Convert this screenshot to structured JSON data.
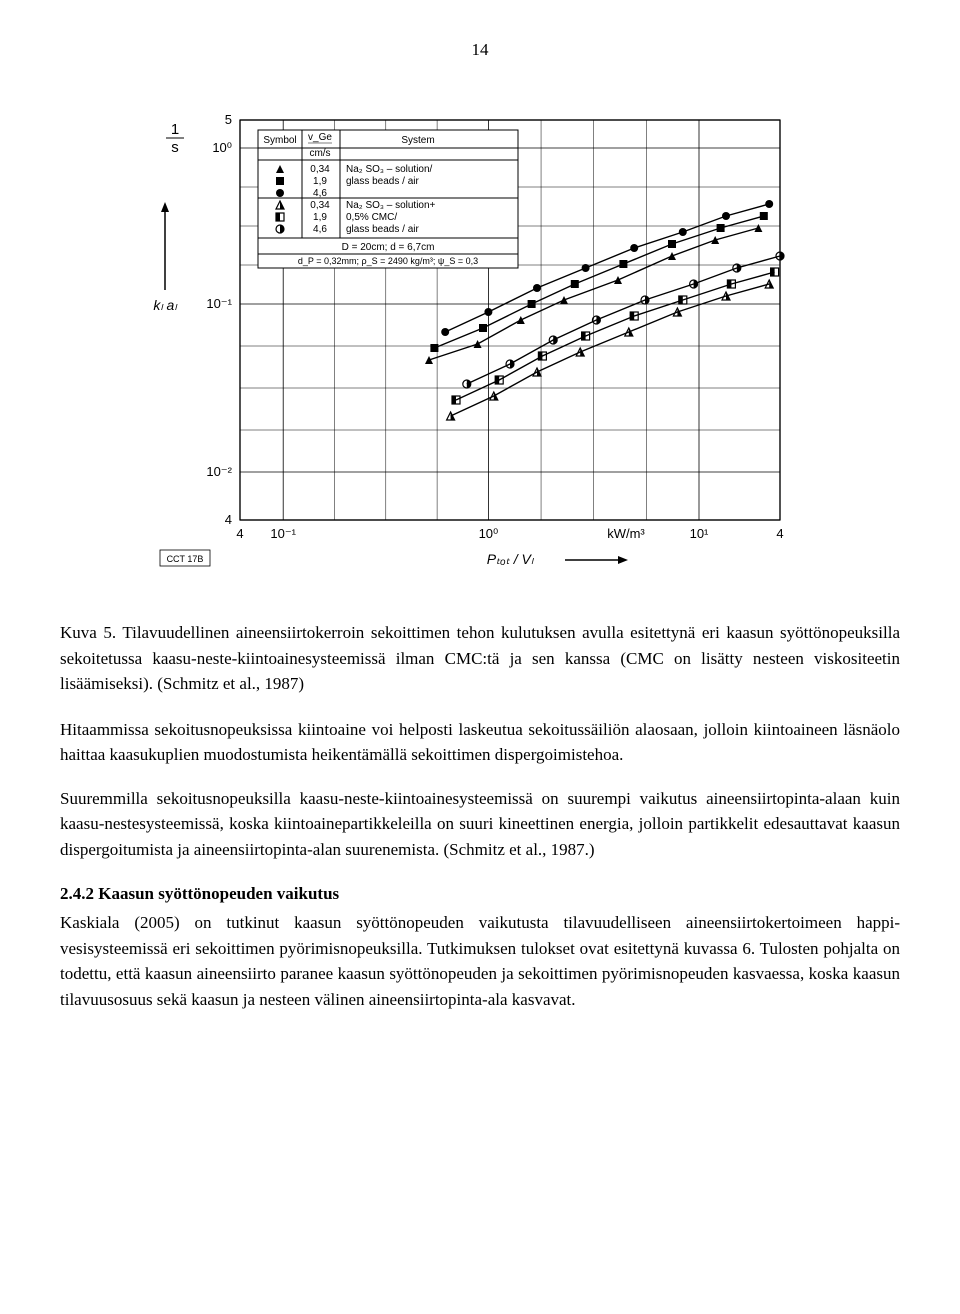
{
  "page_number": "14",
  "figure": {
    "type": "scatter-log-log",
    "y_axis_label_top": "1",
    "y_axis_label_bottom": "s",
    "y_axis_symbol": "k_L a_L",
    "x_axis_label": "P_tot / V_L",
    "x_axis_unit": "kW/m³",
    "y_ticks": [
      "5",
      "10⁰",
      "10⁻¹",
      "10⁻²",
      "4"
    ],
    "x_ticks": [
      "4",
      "10⁻¹",
      "10⁰",
      "10¹",
      "4"
    ],
    "y_tick_pos": [
      0,
      0.07,
      0.46,
      0.88,
      1.0
    ],
    "x_tick_pos": [
      0,
      0.08,
      0.46,
      0.85,
      1.0
    ],
    "legend": {
      "headers": [
        "Symbol",
        "v_Ge",
        "System"
      ],
      "unit_row": [
        "",
        "cm/s",
        ""
      ],
      "rows": [
        {
          "sym": "▲",
          "val": "0,34",
          "sys": "Na₂ SO₃ – solution/"
        },
        {
          "sym": "■",
          "val": "1,9",
          "sys": "glass beads / air"
        },
        {
          "sym": "●",
          "val": "4,6",
          "sys": ""
        },
        {
          "sym": "◭",
          "val": "0,34",
          "sys": "Na₂ SO₃ – solution+"
        },
        {
          "sym": "◧",
          "val": "1,9",
          "sys": "0,5% CMC/"
        },
        {
          "sym": "◑",
          "val": "4,6",
          "sys": "glass beads / air"
        }
      ],
      "footer1": "D = 20cm;   d = 6,7cm",
      "footer2": "d_P = 0,32mm; ρ_S = 2490 kg/m³; ψ_S = 0,3"
    },
    "box_label": "CCT 17B",
    "colors": {
      "line": "#000000",
      "bg": "#ffffff",
      "grid": "#000000"
    },
    "series": [
      {
        "name": "s1",
        "marker": "▲",
        "pts": [
          [
            0.35,
            0.6
          ],
          [
            0.44,
            0.56
          ],
          [
            0.52,
            0.5
          ],
          [
            0.6,
            0.45
          ],
          [
            0.7,
            0.4
          ],
          [
            0.8,
            0.34
          ],
          [
            0.88,
            0.3
          ],
          [
            0.96,
            0.27
          ]
        ]
      },
      {
        "name": "s2",
        "marker": "■",
        "pts": [
          [
            0.36,
            0.57
          ],
          [
            0.45,
            0.52
          ],
          [
            0.54,
            0.46
          ],
          [
            0.62,
            0.41
          ],
          [
            0.71,
            0.36
          ],
          [
            0.8,
            0.31
          ],
          [
            0.89,
            0.27
          ],
          [
            0.97,
            0.24
          ]
        ]
      },
      {
        "name": "s3",
        "marker": "●",
        "pts": [
          [
            0.38,
            0.53
          ],
          [
            0.46,
            0.48
          ],
          [
            0.55,
            0.42
          ],
          [
            0.64,
            0.37
          ],
          [
            0.73,
            0.32
          ],
          [
            0.82,
            0.28
          ],
          [
            0.9,
            0.24
          ],
          [
            0.98,
            0.21
          ]
        ]
      },
      {
        "name": "s4",
        "marker": "◭",
        "pts": [
          [
            0.39,
            0.74
          ],
          [
            0.47,
            0.69
          ],
          [
            0.55,
            0.63
          ],
          [
            0.63,
            0.58
          ],
          [
            0.72,
            0.53
          ],
          [
            0.81,
            0.48
          ],
          [
            0.9,
            0.44
          ],
          [
            0.98,
            0.41
          ]
        ]
      },
      {
        "name": "s5",
        "marker": "◧",
        "pts": [
          [
            0.4,
            0.7
          ],
          [
            0.48,
            0.65
          ],
          [
            0.56,
            0.59
          ],
          [
            0.64,
            0.54
          ],
          [
            0.73,
            0.49
          ],
          [
            0.82,
            0.45
          ],
          [
            0.91,
            0.41
          ],
          [
            0.99,
            0.38
          ]
        ]
      },
      {
        "name": "s6",
        "marker": "◑",
        "pts": [
          [
            0.42,
            0.66
          ],
          [
            0.5,
            0.61
          ],
          [
            0.58,
            0.55
          ],
          [
            0.66,
            0.5
          ],
          [
            0.75,
            0.45
          ],
          [
            0.84,
            0.41
          ],
          [
            0.92,
            0.37
          ],
          [
            1.0,
            0.34
          ]
        ]
      }
    ]
  },
  "caption": "Kuva 5. Tilavuudellinen aineensiirtokerroin sekoittimen tehon kulutuksen avulla esitettynä eri kaasun syöttönopeuksilla sekoitetussa kaasu-neste-kiintoainesysteemissä ilman CMC:tä ja sen kanssa (CMC on lisätty nesteen viskositeetin lisäämiseksi). (Schmitz et al., 1987)",
  "para1": "Hitaammissa sekoitusnopeuksissa kiintoaine voi helposti laskeutua sekoitussäiliön alaosaan, jolloin kiintoaineen läsnäolo haittaa kaasukuplien muodostumista heikentämällä sekoittimen dispergoimistehoa.",
  "para2": "Suuremmilla sekoitusnopeuksilla kaasu-neste-kiintoainesysteemissä on suurempi vaikutus aineensiirtopinta-alaan kuin kaasu-nestesysteemissä, koska kiintoainepartikkeleilla on suuri kineettinen energia, jolloin partikkelit edesauttavat kaasun dispergoitumista ja aineensiirtopinta-alan suurenemista. (Schmitz et al., 1987.)",
  "heading": "2.4.2 Kaasun syöttönopeuden vaikutus",
  "para3": "Kaskiala (2005) on tutkinut kaasun syöttönopeuden vaikutusta tilavuudelliseen aineensiirtokertoimeen happi-vesisysteemissä eri sekoittimen pyörimisnopeuksilla. Tutkimuksen tulokset ovat esitettynä kuvassa 6. Tulosten pohjalta on todettu, että kaasun aineensiirto paranee kaasun syöttönopeuden ja sekoittimen pyörimisnopeuden kasvaessa, koska kaasun tilavuusosuus sekä kaasun ja nesteen välinen aineensiirtopinta-ala kasvavat."
}
